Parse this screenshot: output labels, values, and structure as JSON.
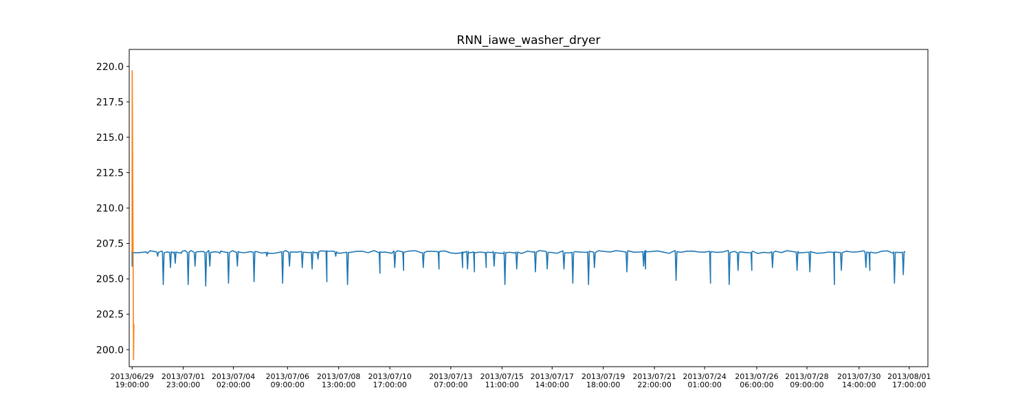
{
  "chart_data": {
    "type": "line",
    "title": "RNN_iawe_washer_dryer",
    "xlabel": "",
    "ylabel": "",
    "x_range": [
      "2013-06-29 16:04",
      "2013-08-02 12:00"
    ],
    "ylim": [
      198.8,
      221.2
    ],
    "y_ticks": [
      "200.0",
      "202.5",
      "205.0",
      "207.5",
      "210.0",
      "212.5",
      "215.0",
      "217.5",
      "220.0"
    ],
    "x_ticks": [
      {
        "x": "2013-06-29 19:00",
        "line1": "2013/06/29",
        "line2": "19:00:00"
      },
      {
        "x": "2013-07-01 23:00",
        "line1": "2013/07/01",
        "line2": "23:00:00"
      },
      {
        "x": "2013-07-04 02:00",
        "line1": "2013/07/04",
        "line2": "02:00:00"
      },
      {
        "x": "2013-07-06 09:00",
        "line1": "2013/07/06",
        "line2": "09:00:00"
      },
      {
        "x": "2013-07-08 13:00",
        "line1": "2013/07/08",
        "line2": "13:00:00"
      },
      {
        "x": "2013-07-10 17:00",
        "line1": "2013/07/10",
        "line2": "17:00:00"
      },
      {
        "x": "2013-07-13 07:00",
        "line1": "2013/07/13",
        "line2": "07:00:00"
      },
      {
        "x": "2013-07-15 11:00",
        "line1": "2013/07/15",
        "line2": "11:00:00"
      },
      {
        "x": "2013-07-17 14:00",
        "line1": "2013/07/17",
        "line2": "14:00:00"
      },
      {
        "x": "2013-07-19 18:00",
        "line1": "2013/07/19",
        "line2": "18:00:00"
      },
      {
        "x": "2013-07-21 22:00",
        "line1": "2013/07/21",
        "line2": "22:00:00"
      },
      {
        "x": "2013-07-24 01:00",
        "line1": "2013/07/24",
        "line2": "01:00:00"
      },
      {
        "x": "2013-07-26 06:00",
        "line1": "2013/07/26",
        "line2": "06:00:00"
      },
      {
        "x": "2013-07-28 09:00",
        "line1": "2013/07/28",
        "line2": "09:00:00"
      },
      {
        "x": "2013-07-30 14:00",
        "line1": "2013/07/30",
        "line2": "14:00:00"
      },
      {
        "x": "2013-08-01 17:00",
        "line1": "2013/08/01",
        "line2": "17:00:00"
      }
    ],
    "grid": false,
    "legend": "none",
    "series": [
      {
        "color": "#1f77b4",
        "baseline": 206.9,
        "x_start": "2013-06-29 19:00",
        "x_end": "2013-08-01 17:00",
        "dips": [
          {
            "x": "2013-06-29 19:05",
            "y": 205.9
          },
          {
            "x": "2013-06-30 10:30",
            "y": 206.8
          },
          {
            "x": "2013-06-30 21:00",
            "y": 206.6
          },
          {
            "x": "2013-07-01 02:40",
            "y": 204.6
          },
          {
            "x": "2013-07-01 10:00",
            "y": 205.8
          },
          {
            "x": "2013-07-01 14:50",
            "y": 206.1
          },
          {
            "x": "2013-07-01 21:00",
            "y": 206.8
          },
          {
            "x": "2013-07-02 04:00",
            "y": 204.6
          },
          {
            "x": "2013-07-02 11:00",
            "y": 205.9
          },
          {
            "x": "2013-07-02 21:50",
            "y": 204.5
          },
          {
            "x": "2013-07-03 02:00",
            "y": 205.9
          },
          {
            "x": "2013-07-03 12:00",
            "y": 206.8
          },
          {
            "x": "2013-07-03 21:00",
            "y": 204.7
          },
          {
            "x": "2013-07-04 06:00",
            "y": 205.9
          },
          {
            "x": "2013-07-04 23:00",
            "y": 204.8
          },
          {
            "x": "2013-07-05 12:00",
            "y": 206.6
          },
          {
            "x": "2013-07-06 04:00",
            "y": 204.7
          },
          {
            "x": "2013-07-06 11:00",
            "y": 205.9
          },
          {
            "x": "2013-07-07 00:00",
            "y": 205.8
          },
          {
            "x": "2013-07-07 10:00",
            "y": 205.7
          },
          {
            "x": "2013-07-07 16:00",
            "y": 206.4
          },
          {
            "x": "2013-07-08 01:00",
            "y": 204.8
          },
          {
            "x": "2013-07-08 10:00",
            "y": 206.6
          },
          {
            "x": "2013-07-08 22:00",
            "y": 204.6
          },
          {
            "x": "2013-07-10 07:00",
            "y": 205.4
          },
          {
            "x": "2013-07-10 22:00",
            "y": 205.8
          },
          {
            "x": "2013-07-11 07:00",
            "y": 205.6
          },
          {
            "x": "2013-07-12 03:00",
            "y": 205.8
          },
          {
            "x": "2013-07-12 19:00",
            "y": 205.7
          },
          {
            "x": "2013-07-13 19:00",
            "y": 205.8
          },
          {
            "x": "2013-07-14 00:00",
            "y": 205.7
          },
          {
            "x": "2013-07-14 07:00",
            "y": 205.5
          },
          {
            "x": "2013-07-14 19:00",
            "y": 205.8
          },
          {
            "x": "2013-07-15 03:00",
            "y": 205.9
          },
          {
            "x": "2013-07-15 14:00",
            "y": 204.6
          },
          {
            "x": "2013-07-16 02:00",
            "y": 205.7
          },
          {
            "x": "2013-07-16 21:00",
            "y": 205.5
          },
          {
            "x": "2013-07-17 09:00",
            "y": 205.7
          },
          {
            "x": "2013-07-18 02:00",
            "y": 205.7
          },
          {
            "x": "2013-07-18 11:00",
            "y": 204.7
          },
          {
            "x": "2013-07-19 03:00",
            "y": 204.6
          },
          {
            "x": "2013-07-19 09:00",
            "y": 205.8
          },
          {
            "x": "2013-07-20 18:00",
            "y": 205.5
          },
          {
            "x": "2013-07-21 11:00",
            "y": 205.9
          },
          {
            "x": "2013-07-21 13:00",
            "y": 205.7
          },
          {
            "x": "2013-07-22 20:00",
            "y": 204.9
          },
          {
            "x": "2013-07-24 07:00",
            "y": 204.7
          },
          {
            "x": "2013-07-25 02:00",
            "y": 204.6
          },
          {
            "x": "2013-07-25 11:00",
            "y": 205.6
          },
          {
            "x": "2013-07-26 01:00",
            "y": 205.6
          },
          {
            "x": "2013-07-26 22:00",
            "y": 205.8
          },
          {
            "x": "2013-07-27 23:00",
            "y": 205.6
          },
          {
            "x": "2013-07-28 12:00",
            "y": 205.5
          },
          {
            "x": "2013-07-29 13:00",
            "y": 204.6
          },
          {
            "x": "2013-07-29 20:00",
            "y": 205.6
          },
          {
            "x": "2013-07-30 21:00",
            "y": 205.8
          },
          {
            "x": "2013-07-31 01:00",
            "y": 205.6
          },
          {
            "x": "2013-08-01 02:00",
            "y": 204.7
          },
          {
            "x": "2013-08-01 11:00",
            "y": 205.3
          },
          {
            "x": "2013-08-01 16:00",
            "y": 204.7
          }
        ],
        "end_value": 206.9
      },
      {
        "color": "#ff7f0e",
        "points": [
          {
            "x": "2013-06-29 19:00",
            "y": 206.9
          },
          {
            "x": "2013-06-29 19:06",
            "y": 219.7
          },
          {
            "x": "2013-06-29 20:30",
            "y": 199.3
          },
          {
            "x": "2013-06-29 20:50",
            "y": 201.8
          },
          {
            "x": "2013-06-29 21:10",
            "y": 201.8
          }
        ]
      }
    ]
  }
}
